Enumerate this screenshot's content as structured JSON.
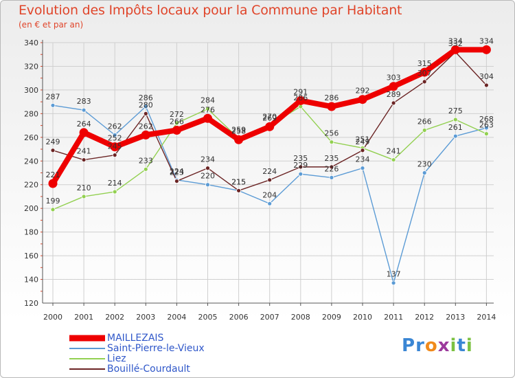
{
  "header": {
    "title": "Evolution des Impôts locaux pour la Commune par Habitant",
    "subtitle": "(en € et par an)"
  },
  "colors": {
    "title": "#e0452a",
    "grid": "#cfcfcf",
    "axis": "#555555",
    "tick_marks": "#e0452a",
    "legend_text": "#2f57c9"
  },
  "logo": {
    "text": "Proxiti",
    "letters": [
      {
        "ch": "P",
        "color": "#3a86d4"
      },
      {
        "ch": "r",
        "color": "#3a86d4"
      },
      {
        "ch": "o",
        "color": "#f08a1c"
      },
      {
        "ch": "x",
        "color": "#9c3a9c"
      },
      {
        "ch": "i",
        "color": "#7cc142"
      },
      {
        "ch": "t",
        "color": "#3a86d4"
      },
      {
        "ch": "i",
        "color": "#7cc142"
      }
    ]
  },
  "chart_data": {
    "type": "line",
    "title": "Evolution des Impôts locaux pour la Commune par Habitant",
    "subtitle": "(en € et par an)",
    "x": [
      "2000",
      "2001",
      "2002",
      "2003",
      "2004",
      "2005",
      "2006",
      "2007",
      "2008",
      "2009",
      "2010",
      "2011",
      "2012",
      "2013",
      "2014"
    ],
    "ylim": [
      120,
      340
    ],
    "yticks": [
      120,
      140,
      160,
      180,
      200,
      220,
      240,
      260,
      280,
      300,
      320,
      340
    ],
    "grid": true,
    "legend_position": "bottom-left",
    "series": [
      {
        "name": "MAILLEZAIS",
        "color": "#ee0000",
        "emphasis": true,
        "values": [
          221,
          264,
          252,
          262,
          266,
          276,
          258,
          269,
          291,
          286,
          292,
          303,
          315,
          334,
          334
        ]
      },
      {
        "name": "Saint-Pierre-le-Vieux",
        "color": "#5b9bd5",
        "emphasis": false,
        "values": [
          287,
          283,
          262,
          286,
          224,
          220,
          215,
          204,
          229,
          226,
          234,
          137,
          230,
          261,
          268
        ]
      },
      {
        "name": "Liez",
        "color": "#92d050",
        "emphasis": false,
        "values": [
          199,
          210,
          214,
          233,
          272,
          284,
          259,
          270,
          286,
          256,
          251,
          241,
          266,
          275,
          263
        ]
      },
      {
        "name": "Bouillé-Courdault",
        "color": "#6b2424",
        "emphasis": false,
        "values": [
          249,
          241,
          245,
          280,
          223,
          234,
          215,
          224,
          235,
          235,
          249,
          289,
          307,
          332,
          304
        ]
      }
    ],
    "data_labels": [
      {
        "text": "221",
        "series": 0,
        "year": "2000"
      },
      {
        "text": "264",
        "series": 0,
        "year": "2001"
      },
      {
        "text": "252",
        "series": 0,
        "year": "2002"
      },
      {
        "text": "262",
        "series": 0,
        "year": "2003"
      },
      {
        "text": "266",
        "series": 0,
        "year": "2004"
      },
      {
        "text": "276",
        "series": 0,
        "year": "2005"
      },
      {
        "text": "258",
        "series": 0,
        "year": "2006"
      },
      {
        "text": "269",
        "series": 0,
        "year": "2007"
      },
      {
        "text": "291",
        "series": 0,
        "year": "2008"
      },
      {
        "text": "286",
        "series": 0,
        "year": "2009"
      },
      {
        "text": "292",
        "series": 0,
        "year": "2010"
      },
      {
        "text": "303",
        "series": 0,
        "year": "2011"
      },
      {
        "text": "315",
        "series": 0,
        "year": "2012"
      },
      {
        "text": "334",
        "series": 0,
        "year": "2013"
      },
      {
        "text": "334",
        "series": 0,
        "year": "2014"
      },
      {
        "text": "287",
        "series": 1,
        "year": "2000"
      },
      {
        "text": "283",
        "series": 1,
        "year": "2001"
      },
      {
        "text": "262",
        "series": 1,
        "year": "2002"
      },
      {
        "text": "286",
        "series": 1,
        "year": "2003"
      },
      {
        "text": "224",
        "series": 1,
        "year": "2004"
      },
      {
        "text": "220",
        "series": 1,
        "year": "2005"
      },
      {
        "text": "215",
        "series": 1,
        "year": "2006"
      },
      {
        "text": "204",
        "series": 1,
        "year": "2007"
      },
      {
        "text": "229",
        "series": 1,
        "year": "2008"
      },
      {
        "text": "226",
        "series": 1,
        "year": "2009"
      },
      {
        "text": "234",
        "series": 1,
        "year": "2010"
      },
      {
        "text": "137",
        "series": 1,
        "year": "2011"
      },
      {
        "text": "230",
        "series": 1,
        "year": "2012"
      },
      {
        "text": "261",
        "series": 1,
        "year": "2013"
      },
      {
        "text": "268",
        "series": 1,
        "year": "2014"
      },
      {
        "text": "199",
        "series": 2,
        "year": "2000"
      },
      {
        "text": "210",
        "series": 2,
        "year": "2001"
      },
      {
        "text": "214",
        "series": 2,
        "year": "2002"
      },
      {
        "text": "233",
        "series": 2,
        "year": "2003"
      },
      {
        "text": "272",
        "series": 2,
        "year": "2004"
      },
      {
        "text": "284",
        "series": 2,
        "year": "2005"
      },
      {
        "text": "259",
        "series": 2,
        "year": "2006"
      },
      {
        "text": "270",
        "series": 2,
        "year": "2007"
      },
      {
        "text": "286",
        "series": 2,
        "year": "2008"
      },
      {
        "text": "256",
        "series": 2,
        "year": "2009"
      },
      {
        "text": "251",
        "series": 2,
        "year": "2010"
      },
      {
        "text": "241",
        "series": 2,
        "year": "2011"
      },
      {
        "text": "266",
        "series": 2,
        "year": "2012"
      },
      {
        "text": "275",
        "series": 2,
        "year": "2013"
      },
      {
        "text": "263",
        "series": 2,
        "year": "2014"
      },
      {
        "text": "249",
        "series": 3,
        "year": "2000"
      },
      {
        "text": "241",
        "series": 3,
        "year": "2001"
      },
      {
        "text": "245",
        "series": 3,
        "year": "2002"
      },
      {
        "text": "280",
        "series": 3,
        "year": "2003"
      },
      {
        "text": "223",
        "series": 3,
        "year": "2004"
      },
      {
        "text": "234",
        "series": 3,
        "year": "2005"
      },
      {
        "text": "215",
        "series": 3,
        "year": "2006"
      },
      {
        "text": "224",
        "series": 3,
        "year": "2007"
      },
      {
        "text": "235",
        "series": 3,
        "year": "2008"
      },
      {
        "text": "235",
        "series": 3,
        "year": "2009"
      },
      {
        "text": "249",
        "series": 3,
        "year": "2010"
      },
      {
        "text": "289",
        "series": 3,
        "year": "2011"
      },
      {
        "text": "307",
        "series": 3,
        "year": "2012"
      },
      {
        "text": "332",
        "series": 3,
        "year": "2013"
      },
      {
        "text": "304",
        "series": 3,
        "year": "2014"
      }
    ]
  }
}
